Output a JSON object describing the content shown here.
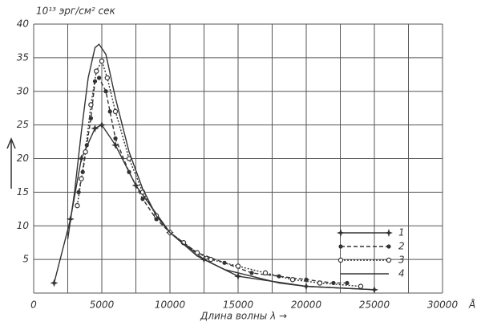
{
  "chart_data": {
    "type": "line",
    "y_title": "10¹³ эрг/см² сек",
    "x_title": "Длина волны λ →",
    "x_unit": "Å",
    "xlim": [
      0,
      30000
    ],
    "ylim": [
      0,
      40
    ],
    "xticks": [
      0,
      5000,
      10000,
      15000,
      20000,
      25000,
      30000
    ],
    "xminor": [
      2500,
      7500,
      12500,
      17500,
      22500,
      27500
    ],
    "yticks": [
      5,
      10,
      15,
      20,
      25,
      30,
      35,
      40
    ],
    "grid": true,
    "legend": "lower right",
    "series": [
      {
        "name": "1",
        "color": "#333333",
        "dash": "none",
        "marker": "star",
        "x": [
          1500,
          2700,
          3500,
          4500,
          5000,
          6000,
          7500,
          10000,
          12500,
          15000,
          20000,
          25000
        ],
        "values": [
          1.5,
          11,
          20,
          24.5,
          25,
          22,
          16,
          9,
          5,
          2.5,
          1,
          0.5
        ]
      },
      {
        "name": "2",
        "color": "#333333",
        "dash": "5,3",
        "marker": "dot",
        "x": [
          3300,
          3600,
          3900,
          4200,
          4500,
          4800,
          5300,
          5600,
          6000,
          7000,
          8000,
          9000,
          10000,
          12000,
          14000,
          16000,
          18000,
          20000,
          22000,
          23000
        ],
        "values": [
          15,
          18,
          22,
          26,
          31.5,
          32,
          30,
          27,
          23,
          18,
          14,
          11,
          9,
          6,
          4.5,
          3,
          2.5,
          2,
          1.5,
          1.5
        ]
      },
      {
        "name": "3",
        "color": "#333333",
        "dash": "2,2",
        "marker": "circle",
        "x": [
          3200,
          3500,
          3800,
          4200,
          4600,
          5000,
          5400,
          6000,
          7000,
          8000,
          9000,
          10000,
          11000,
          12000,
          13000,
          15000,
          17000,
          19000,
          21000,
          24000
        ],
        "values": [
          13,
          17,
          21,
          28,
          33,
          34.5,
          32,
          27,
          20,
          15,
          11.5,
          9,
          7.5,
          6,
          5,
          4,
          3,
          2,
          1.5,
          1
        ]
      },
      {
        "name": "4",
        "color": "#333333",
        "dash": "none",
        "marker": "none",
        "x": [
          2500,
          3000,
          3500,
          4000,
          4500,
          4800,
          5300,
          6000,
          7000,
          8000,
          9000,
          10000,
          12000,
          14000,
          16000,
          18000,
          20000,
          25000
        ],
        "values": [
          8,
          15,
          24,
          32,
          36.5,
          37,
          35.5,
          29,
          21,
          15.5,
          11.5,
          9,
          5.5,
          3.5,
          2.5,
          1.5,
          1,
          0.5
        ]
      }
    ]
  }
}
